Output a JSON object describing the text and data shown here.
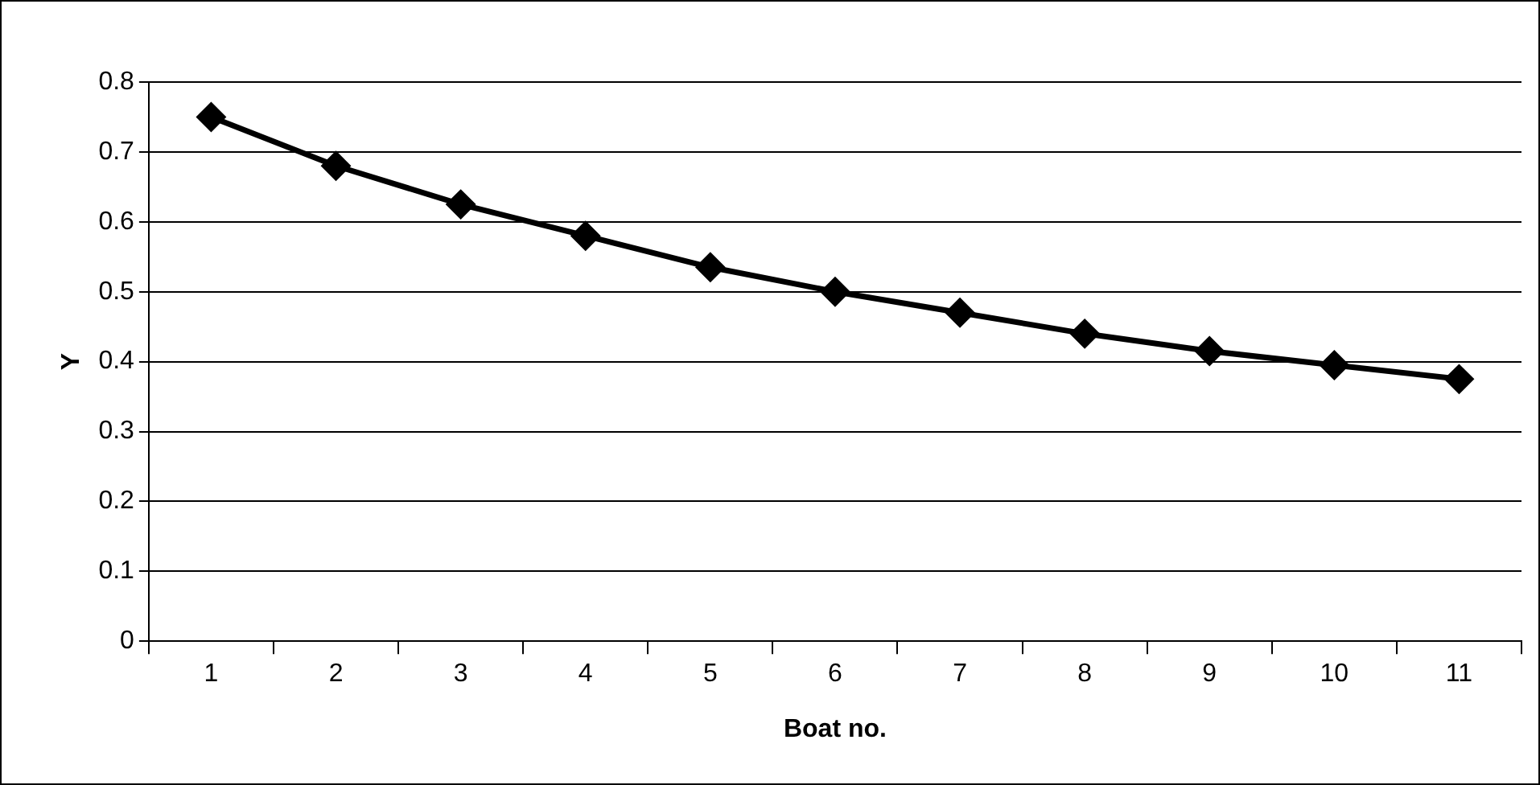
{
  "chart_data": {
    "type": "line",
    "xlabel": "Boat no.",
    "ylabel": "Y",
    "categories": [
      "1",
      "2",
      "3",
      "4",
      "5",
      "6",
      "7",
      "8",
      "9",
      "10",
      "11"
    ],
    "series": [
      {
        "color": "#000000",
        "values": [
          0.75,
          0.68,
          0.625,
          0.58,
          0.535,
          0.5,
          0.47,
          0.44,
          0.415,
          0.395,
          0.375
        ]
      }
    ],
    "ylim": [
      0,
      0.8
    ],
    "yticks": [
      0,
      0.1,
      0.2,
      0.3,
      0.4,
      0.5,
      0.6,
      0.7,
      0.8
    ],
    "grid": "y",
    "legend": false,
    "marker": "diamond",
    "line_style": "solid"
  }
}
